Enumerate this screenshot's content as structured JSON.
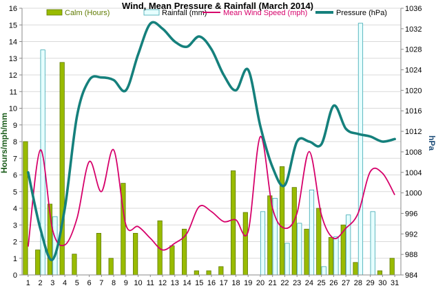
{
  "chart_data": {
    "type": "bar",
    "title": "Wind, Mean Pressure & Rainfall (March 2014)",
    "ylabel": "Hours/mph/mm",
    "y2label": "hPa",
    "ylim": [
      0,
      16
    ],
    "y2lim": [
      984,
      1036
    ],
    "yticks": [
      "0",
      "1",
      "2",
      "3",
      "4",
      "5",
      "6",
      "7",
      "8",
      "9",
      "10",
      "11",
      "12",
      "13",
      "14",
      "15",
      "16"
    ],
    "y2ticks": [
      "984",
      "988",
      "992",
      "996",
      "1000",
      "1004",
      "1008",
      "1012",
      "1016",
      "1020",
      "1024",
      "1028",
      "1032",
      "1036"
    ],
    "categories": [
      "1",
      "2",
      "3",
      "4",
      "5",
      "6",
      "7",
      "8",
      "9",
      "10",
      "11",
      "12",
      "13",
      "14",
      "15",
      "16",
      "17",
      "18",
      "19",
      "20",
      "21",
      "22",
      "23",
      "24",
      "25",
      "26",
      "27",
      "28",
      "29",
      "30",
      "31"
    ],
    "grid": true,
    "legend_position": "top",
    "series": [
      {
        "name": "Calm (Hours)",
        "kind": "bar",
        "color": "#99bb00",
        "border": "#5f7a00",
        "values": [
          8.0,
          1.5,
          4.25,
          12.75,
          1.25,
          0,
          2.5,
          1.0,
          5.5,
          2.5,
          0,
          3.25,
          1.75,
          2.75,
          0.25,
          0.25,
          0.5,
          6.25,
          3.75,
          0,
          4.75,
          6.5,
          5.25,
          2.75,
          4.0,
          2.25,
          3.0,
          0.75,
          0,
          0.25,
          1.0
        ]
      },
      {
        "name": "Rainfall (mm)",
        "kind": "bar",
        "color": "#e6ffff",
        "border": "#3aa6b0",
        "values": [
          0,
          13.5,
          3.5,
          0,
          0,
          0,
          0,
          0,
          0,
          0,
          0,
          0,
          0,
          0,
          0,
          0,
          0,
          0,
          0,
          3.8,
          4.6,
          1.9,
          3.1,
          5.1,
          0.5,
          2.3,
          3.6,
          15.1,
          3.8,
          0,
          0
        ]
      },
      {
        "name": "Mean Wind Speed (mph)",
        "kind": "line",
        "color": "#d6006a",
        "values": [
          1.7,
          7.5,
          2.7,
          1.8,
          3.4,
          6.8,
          5.0,
          7.5,
          3.0,
          2.9,
          2.2,
          1.5,
          1.9,
          2.5,
          4.1,
          3.8,
          3.2,
          3.3,
          2.6,
          8.3,
          4.0,
          2.8,
          3.7,
          7.4,
          3.6,
          2.2,
          2.8,
          3.7,
          6.2,
          6.1,
          4.8
        ]
      },
      {
        "name": "Pressure (hPa)",
        "kind": "line",
        "axis": "right",
        "color": "#15807c",
        "values": [
          1004.0,
          993.0,
          987.0,
          997.0,
          1015.0,
          1022.0,
          1022.5,
          1022.0,
          1020.0,
          1027.0,
          1033.0,
          1032.0,
          1029.5,
          1028.5,
          1030.5,
          1028.0,
          1023.0,
          1020.0,
          1024.0,
          1013.0,
          1005.0,
          1001.5,
          1010.0,
          1010.0,
          1009.5,
          1017.0,
          1012.5,
          1011.5,
          1011.0,
          1010.0,
          1010.5
        ]
      }
    ]
  }
}
